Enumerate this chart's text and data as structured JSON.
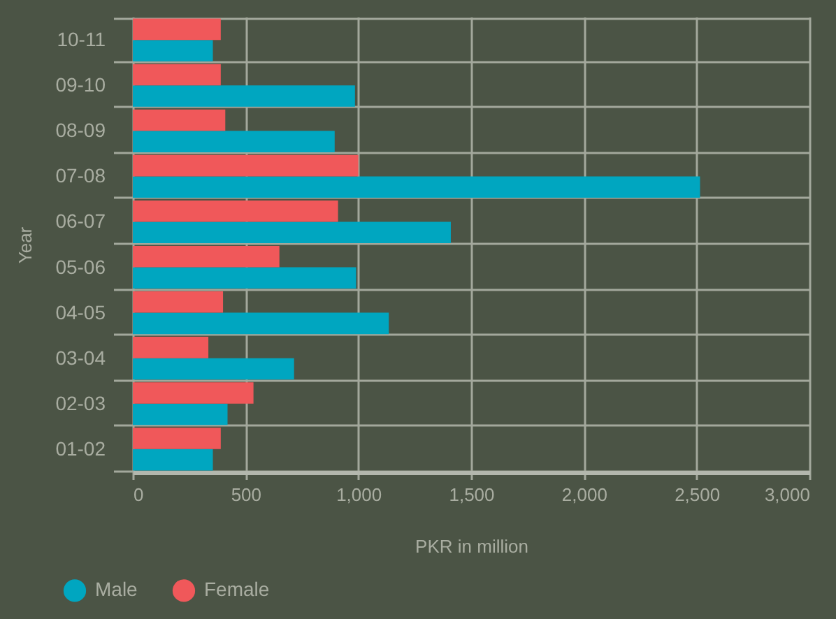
{
  "chart_data": {
    "type": "bar",
    "orientation": "horizontal",
    "xlabel": "PKR in million",
    "ylabel": "Year",
    "categories": [
      "10-11",
      "09-10",
      "08-09",
      "07-08",
      "06-07",
      "05-06",
      "04-05",
      "03-04",
      "02-03",
      "01-02"
    ],
    "series": [
      {
        "name": "Male",
        "color": "#00a6c0",
        "values": [
          355,
          985,
          895,
          2515,
          1410,
          990,
          1135,
          715,
          420,
          355
        ]
      },
      {
        "name": "Female",
        "color": "#f0585a",
        "values": [
          390,
          390,
          410,
          1000,
          910,
          650,
          400,
          335,
          535,
          390
        ]
      }
    ],
    "xlim": [
      0,
      3000
    ],
    "xticks": [
      0,
      500,
      {
        "value": 1000,
        "label": "1,000"
      },
      {
        "value": 1500,
        "label": "1,500"
      },
      {
        "value": 2000,
        "label": "2,000"
      },
      {
        "value": 2500,
        "label": "2,500"
      },
      {
        "value": 3000,
        "label": "3,000"
      }
    ],
    "grid": true,
    "legend": "bottom left"
  }
}
